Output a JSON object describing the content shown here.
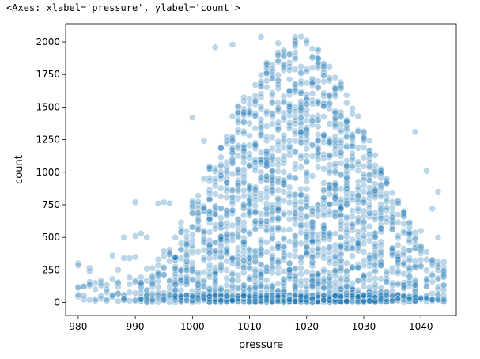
{
  "repr_text": "<Axes: xlabel='pressure', ylabel='count'>",
  "chart_data": {
    "type": "scatter",
    "title": "",
    "xlabel": "pressure",
    "ylabel": "count",
    "xlim": [
      977.8,
      1046.2
    ],
    "ylim": [
      -100,
      2140
    ],
    "xticks": [
      980,
      990,
      1000,
      1010,
      1020,
      1030,
      1040
    ],
    "yticks": [
      0,
      250,
      500,
      750,
      1000,
      1250,
      1500,
      1750,
      2000
    ],
    "grid": false,
    "legend": "none",
    "marker_color": "#1f77b4",
    "marker_alpha": 0.3,
    "x_range": [
      980,
      1044
    ],
    "outliers": [
      {
        "x": 980,
        "y": 300
      },
      {
        "x": 980,
        "y": 285
      },
      {
        "x": 982,
        "y": 265
      },
      {
        "x": 982,
        "y": 240
      },
      {
        "x": 984,
        "y": 130
      },
      {
        "x": 985,
        "y": 100
      },
      {
        "x": 986,
        "y": 360
      },
      {
        "x": 987,
        "y": 250
      },
      {
        "x": 987,
        "y": 150
      },
      {
        "x": 987,
        "y": 120
      },
      {
        "x": 988,
        "y": 500
      },
      {
        "x": 988,
        "y": 340
      },
      {
        "x": 988,
        "y": 30
      },
      {
        "x": 988,
        "y": 20
      },
      {
        "x": 989,
        "y": 340
      },
      {
        "x": 990,
        "y": 770
      },
      {
        "x": 990,
        "y": 510
      },
      {
        "x": 990,
        "y": 350
      },
      {
        "x": 990,
        "y": 15
      },
      {
        "x": 991,
        "y": 530
      },
      {
        "x": 991,
        "y": 140
      },
      {
        "x": 992,
        "y": 500
      },
      {
        "x": 993,
        "y": 20
      },
      {
        "x": 994,
        "y": 760
      },
      {
        "x": 995,
        "y": 770
      },
      {
        "x": 996,
        "y": 760
      },
      {
        "x": 1004,
        "y": 1960
      },
      {
        "x": 1007,
        "y": 1980
      },
      {
        "x": 1012,
        "y": 2040
      },
      {
        "x": 1015,
        "y": 1990
      },
      {
        "x": 1002,
        "y": 1240
      },
      {
        "x": 1000,
        "y": 1420
      },
      {
        "x": 1040,
        "y": 550
      },
      {
        "x": 1041,
        "y": 1010
      },
      {
        "x": 1042,
        "y": 720
      },
      {
        "x": 1043,
        "y": 850
      },
      {
        "x": 1043,
        "y": 500
      },
      {
        "x": 1043,
        "y": 290
      },
      {
        "x": 1044,
        "y": 310
      },
      {
        "x": 1044,
        "y": 240
      },
      {
        "x": 1039,
        "y": 1310
      },
      {
        "x": 1041,
        "y": 30
      }
    ]
  }
}
